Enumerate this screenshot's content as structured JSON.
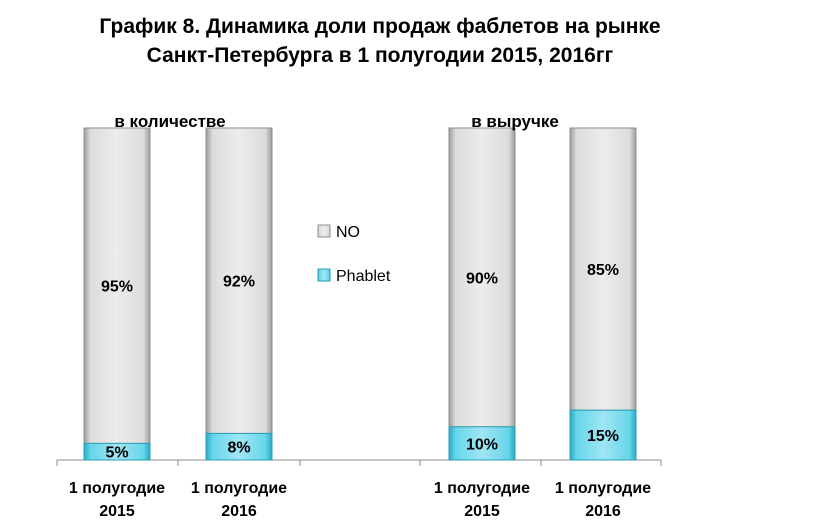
{
  "chart_data": {
    "type": "bar",
    "stacked": true,
    "normalized_percent": true,
    "title_line1": "График 8. Динамика доли продаж фаблетов на рынке",
    "title_line2": "Санкт-Петербурга в 1 полугодии 2015, 2016гг",
    "groups": [
      {
        "label": "в количестве",
        "categories": [
          "1 полугодие 2015",
          "1 полугодие 2016"
        ]
      },
      {
        "label": "в выручке",
        "categories": [
          "1 полугодие 2015",
          "1 полугодие 2016"
        ]
      }
    ],
    "category_lines": [
      [
        "1 полугодие",
        "2015"
      ],
      [
        "1 полугодие",
        "2016"
      ],
      [
        "1 полугодие",
        "2015"
      ],
      [
        "1 полугодие",
        "2016"
      ]
    ],
    "series": [
      {
        "name": "Phablet",
        "values": [
          5,
          8,
          10,
          15
        ],
        "labels": [
          "5%",
          "8%",
          "10%",
          "15%"
        ],
        "color": "#5fd0e6"
      },
      {
        "name": "NO",
        "values": [
          95,
          92,
          90,
          85
        ],
        "labels": [
          "95%",
          "92%",
          "90%",
          "85%"
        ],
        "color": "#d9d9d9"
      }
    ],
    "legend": {
      "placement": "center",
      "entries": [
        "NO",
        "Phablet"
      ]
    },
    "ylim": [
      0,
      100
    ],
    "grid": false
  }
}
